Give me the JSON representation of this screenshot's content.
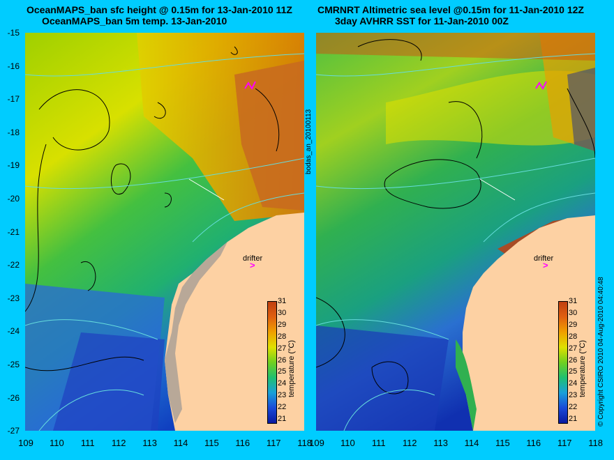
{
  "left_panel": {
    "title_line1": "OceanMAPS_ban sfc height @ 0.15m for 13-Jan-2010 11Z",
    "title_line2": "OceanMAPS_ban 5m temp. 13-Jan-2010",
    "colorbar_label": "temperature (°C)",
    "drifter_label": "drifter"
  },
  "right_panel": {
    "title_line1": "CMRNRT Altimetric sea level  @0.15m  for 11-Jan-2010 12Z",
    "title_line2": "3day AVHRR SST for 11-Jan-2010 00Z",
    "colorbar_label": "temperature (°C)",
    "drifter_label": "drifter"
  },
  "side_label": "bodas_an_20100113",
  "copyright": "© Copyright CSIRO 2010   04-Aug-2010 04:40:48",
  "y_ticks": [
    "-15",
    "-16",
    "-17",
    "-18",
    "-19",
    "-20",
    "-21",
    "-22",
    "-23",
    "-24",
    "-25",
    "-26",
    "-27"
  ],
  "x_ticks": [
    "109",
    "110",
    "111",
    "112",
    "113",
    "114",
    "115",
    "116",
    "117",
    "118"
  ],
  "colorbar_ticks": [
    "31",
    "30",
    "29",
    "28",
    "27",
    "26",
    "25",
    "24",
    "23",
    "22",
    "21"
  ],
  "colors": {
    "background": "#00ccff",
    "land": "#fdd1a3",
    "drifter": "#ff00ff",
    "contour_sea": "#000000",
    "contour_bathy": "#66dddd"
  }
}
